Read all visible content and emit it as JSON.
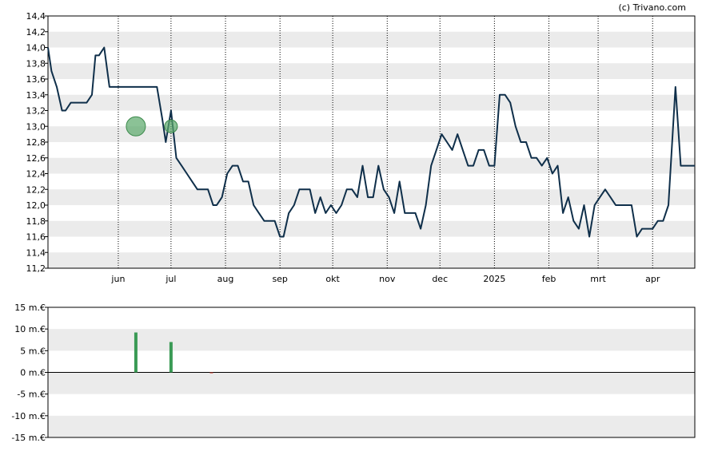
{
  "credit": "(c) Trivano.com",
  "colors": {
    "price_line": "#0f2f4a",
    "band": "#ebebeb",
    "marker": "#5aa86a",
    "bar_positive": "#3a9a55",
    "bar_negative": "#c0392b",
    "grid": "#000000"
  },
  "chart_data": [
    {
      "type": "line",
      "title": "",
      "xlabel": "",
      "ylabel": "",
      "y_tick_labels": [
        "11,2",
        "11,4",
        "11,6",
        "11,8",
        "12,0",
        "12,2",
        "12,4",
        "12,6",
        "12,8",
        "13,0",
        "13,2",
        "13,4",
        "13,6",
        "13,8",
        "14,0",
        "14,2",
        "14,4"
      ],
      "ylim": [
        11.2,
        14.4
      ],
      "x_tick_labels": [
        "jun",
        "jul",
        "aug",
        "sep",
        "okt",
        "nov",
        "dec",
        "2025",
        "feb",
        "mrt",
        "apr"
      ],
      "x_ticks": [
        "2024-06-01",
        "2024-07-01",
        "2024-08-01",
        "2024-09-01",
        "2024-10-01",
        "2024-11-01",
        "2024-12-01",
        "2025-01-01",
        "2025-02-01",
        "2025-03-01",
        "2025-04-01"
      ],
      "xlim": [
        "2024-04-22",
        "2025-04-25"
      ],
      "grid": true,
      "series": [
        {
          "points": [
            [
              "2024-04-22",
              14.0
            ],
            [
              "2024-04-24",
              13.7
            ],
            [
              "2024-04-27",
              13.5
            ],
            [
              "2024-04-30",
              13.2
            ],
            [
              "2024-05-02",
              13.2
            ],
            [
              "2024-05-05",
              13.3
            ],
            [
              "2024-05-08",
              13.3
            ],
            [
              "2024-05-11",
              13.3
            ],
            [
              "2024-05-14",
              13.3
            ],
            [
              "2024-05-17",
              13.4
            ],
            [
              "2024-05-19",
              13.9
            ],
            [
              "2024-05-21",
              13.9
            ],
            [
              "2024-05-24",
              14.0
            ],
            [
              "2024-05-27",
              13.5
            ],
            [
              "2024-05-30",
              13.5
            ],
            [
              "2024-06-02",
              13.5
            ],
            [
              "2024-06-05",
              13.5
            ],
            [
              "2024-06-08",
              13.5
            ],
            [
              "2024-06-11",
              13.5
            ],
            [
              "2024-06-14",
              13.5
            ],
            [
              "2024-06-17",
              13.5
            ],
            [
              "2024-06-20",
              13.5
            ],
            [
              "2024-06-23",
              13.5
            ],
            [
              "2024-06-26",
              13.1
            ],
            [
              "2024-06-28",
              12.8
            ],
            [
              "2024-07-01",
              13.2
            ],
            [
              "2024-07-04",
              12.6
            ],
            [
              "2024-07-07",
              12.5
            ],
            [
              "2024-07-10",
              12.4
            ],
            [
              "2024-07-13",
              12.3
            ],
            [
              "2024-07-16",
              12.2
            ],
            [
              "2024-07-19",
              12.2
            ],
            [
              "2024-07-22",
              12.2
            ],
            [
              "2024-07-25",
              12.0
            ],
            [
              "2024-07-27",
              12.0
            ],
            [
              "2024-07-30",
              12.1
            ],
            [
              "2024-08-02",
              12.4
            ],
            [
              "2024-08-05",
              12.5
            ],
            [
              "2024-08-08",
              12.5
            ],
            [
              "2024-08-11",
              12.3
            ],
            [
              "2024-08-14",
              12.3
            ],
            [
              "2024-08-17",
              12.0
            ],
            [
              "2024-08-20",
              11.9
            ],
            [
              "2024-08-23",
              11.8
            ],
            [
              "2024-08-26",
              11.8
            ],
            [
              "2024-08-29",
              11.8
            ],
            [
              "2024-09-01",
              11.6
            ],
            [
              "2024-09-03",
              11.6
            ],
            [
              "2024-09-06",
              11.9
            ],
            [
              "2024-09-09",
              12.0
            ],
            [
              "2024-09-12",
              12.2
            ],
            [
              "2024-09-15",
              12.2
            ],
            [
              "2024-09-18",
              12.2
            ],
            [
              "2024-09-21",
              11.9
            ],
            [
              "2024-09-24",
              12.1
            ],
            [
              "2024-09-27",
              11.9
            ],
            [
              "2024-09-30",
              12.0
            ],
            [
              "2024-10-03",
              11.9
            ],
            [
              "2024-10-06",
              12.0
            ],
            [
              "2024-10-09",
              12.2
            ],
            [
              "2024-10-12",
              12.2
            ],
            [
              "2024-10-15",
              12.1
            ],
            [
              "2024-10-18",
              12.5
            ],
            [
              "2024-10-21",
              12.1
            ],
            [
              "2024-10-24",
              12.1
            ],
            [
              "2024-10-27",
              12.5
            ],
            [
              "2024-10-30",
              12.2
            ],
            [
              "2024-11-02",
              12.1
            ],
            [
              "2024-11-05",
              11.9
            ],
            [
              "2024-11-08",
              12.3
            ],
            [
              "2024-11-11",
              11.9
            ],
            [
              "2024-11-14",
              11.9
            ],
            [
              "2024-11-17",
              11.9
            ],
            [
              "2024-11-20",
              11.7
            ],
            [
              "2024-11-23",
              12.0
            ],
            [
              "2024-11-26",
              12.5
            ],
            [
              "2024-11-29",
              12.7
            ],
            [
              "2024-12-02",
              12.9
            ],
            [
              "2024-12-05",
              12.8
            ],
            [
              "2024-12-08",
              12.7
            ],
            [
              "2024-12-11",
              12.9
            ],
            [
              "2024-12-14",
              12.7
            ],
            [
              "2024-12-17",
              12.5
            ],
            [
              "2024-12-20",
              12.5
            ],
            [
              "2024-12-23",
              12.7
            ],
            [
              "2024-12-26",
              12.7
            ],
            [
              "2024-12-29",
              12.5
            ],
            [
              "2025-01-01",
              12.5
            ],
            [
              "2025-01-04",
              13.4
            ],
            [
              "2025-01-07",
              13.4
            ],
            [
              "2025-01-10",
              13.3
            ],
            [
              "2025-01-13",
              13.0
            ],
            [
              "2025-01-16",
              12.8
            ],
            [
              "2025-01-19",
              12.8
            ],
            [
              "2025-01-22",
              12.6
            ],
            [
              "2025-01-25",
              12.6
            ],
            [
              "2025-01-28",
              12.5
            ],
            [
              "2025-01-31",
              12.6
            ],
            [
              "2025-02-03",
              12.4
            ],
            [
              "2025-02-06",
              12.5
            ],
            [
              "2025-02-09",
              11.9
            ],
            [
              "2025-02-12",
              12.1
            ],
            [
              "2025-02-15",
              11.8
            ],
            [
              "2025-02-18",
              11.7
            ],
            [
              "2025-02-21",
              12.0
            ],
            [
              "2025-02-24",
              11.6
            ],
            [
              "2025-02-27",
              12.0
            ],
            [
              "2025-03-02",
              12.1
            ],
            [
              "2025-03-05",
              12.2
            ],
            [
              "2025-03-08",
              12.1
            ],
            [
              "2025-03-11",
              12.0
            ],
            [
              "2025-03-14",
              12.0
            ],
            [
              "2025-03-17",
              12.0
            ],
            [
              "2025-03-20",
              12.0
            ],
            [
              "2025-03-23",
              11.6
            ],
            [
              "2025-03-26",
              11.7
            ],
            [
              "2025-03-29",
              11.7
            ],
            [
              "2025-04-01",
              11.7
            ],
            [
              "2025-04-04",
              11.8
            ],
            [
              "2025-04-07",
              11.8
            ],
            [
              "2025-04-10",
              12.0
            ],
            [
              "2025-04-14",
              13.5
            ],
            [
              "2025-04-17",
              12.5
            ],
            [
              "2025-04-25",
              12.5
            ]
          ]
        }
      ],
      "markers": [
        {
          "date": "2024-06-11",
          "value": 13.0,
          "type": "circle",
          "size": "large"
        },
        {
          "date": "2024-07-01",
          "value": 13.0,
          "type": "circle",
          "size": "small"
        }
      ]
    },
    {
      "type": "bar",
      "title": "",
      "xlabel": "",
      "ylabel": "",
      "y_tick_labels": [
        "-15 m.€",
        "-10 m.€",
        "-5 m.€",
        "0 m.€",
        "5 m.€",
        "10 m.€",
        "15 m.€"
      ],
      "ylim": [
        -15,
        15
      ],
      "unit": "m.€",
      "grid": true,
      "bars": [
        {
          "date": "2024-06-11",
          "value": 9.2
        },
        {
          "date": "2024-07-01",
          "value": 7.0
        },
        {
          "date": "2024-07-24",
          "value": -0.2
        }
      ]
    }
  ]
}
